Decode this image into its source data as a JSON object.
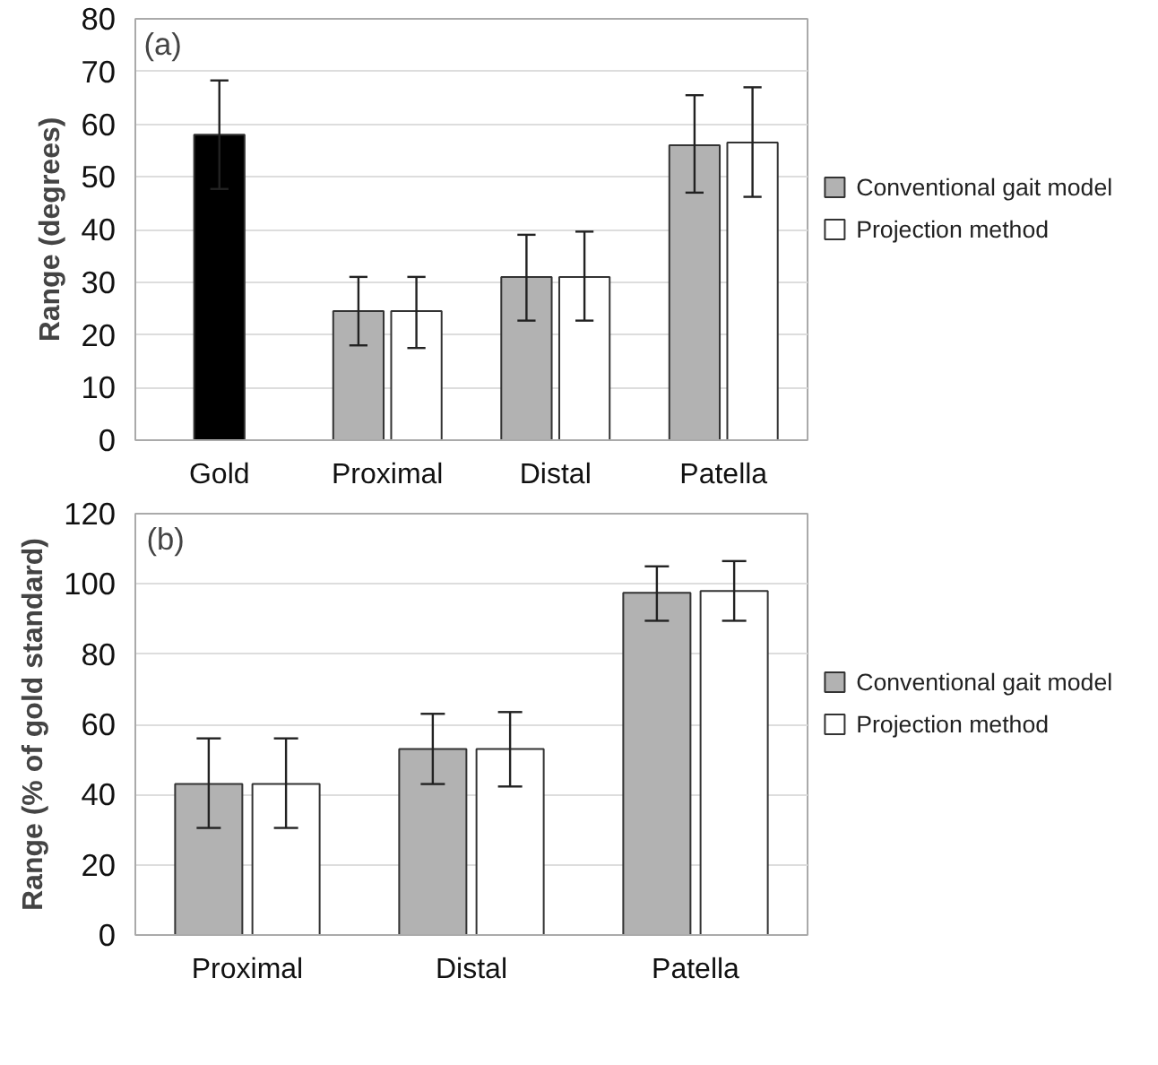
{
  "chart_data": [
    {
      "type": "bar",
      "ylabel": "Range (degrees)",
      "annotations": [
        "(a)"
      ],
      "categories": [
        "Gold",
        "Proximal",
        "Distal",
        "Patella"
      ],
      "ylim": [
        0,
        80
      ],
      "yticks": [
        0,
        10,
        20,
        30,
        40,
        50,
        60,
        70,
        80
      ],
      "grid": "y",
      "legend": "right",
      "series": [
        {
          "color": "#000000",
          "values": [
            58,
            null,
            null,
            null
          ],
          "errors": [
            10.3,
            null,
            null,
            null
          ]
        },
        {
          "name": "Conventional gait model",
          "color": "#b2b2b2",
          "values": [
            null,
            24.5,
            31,
            56
          ],
          "errors": [
            null,
            [
              18,
              31
            ],
            [
              22.7,
              39
            ],
            [
              47,
              65.5
            ]
          ]
        },
        {
          "name": "Projection method",
          "color": "#ffffff",
          "values": [
            null,
            24.5,
            31,
            56.5
          ],
          "errors": [
            null,
            [
              17.5,
              31
            ],
            [
              22.7,
              39.6
            ],
            [
              46.2,
              67
            ]
          ]
        }
      ]
    },
    {
      "type": "bar",
      "ylabel": "Range (% of gold standard)",
      "annotations": [
        "(b)"
      ],
      "categories": [
        "Proximal",
        "Distal",
        "Patella"
      ],
      "ylim": [
        0,
        120
      ],
      "yticks": [
        0,
        20,
        40,
        60,
        80,
        100,
        120
      ],
      "grid": "y",
      "legend": "right",
      "series": [
        {
          "name": "Conventional gait model",
          "color": "#b2b2b2",
          "values": [
            43,
            53,
            97.5
          ],
          "errors": [
            [
              30.5,
              56
            ],
            [
              43,
              63
            ],
            [
              89.5,
              105
            ]
          ]
        },
        {
          "name": "Projection method",
          "color": "#ffffff",
          "values": [
            43,
            53,
            98
          ],
          "errors": [
            [
              30.5,
              56
            ],
            [
              42.3,
              63.5
            ],
            [
              89.5,
              106.5
            ]
          ]
        }
      ]
    }
  ]
}
